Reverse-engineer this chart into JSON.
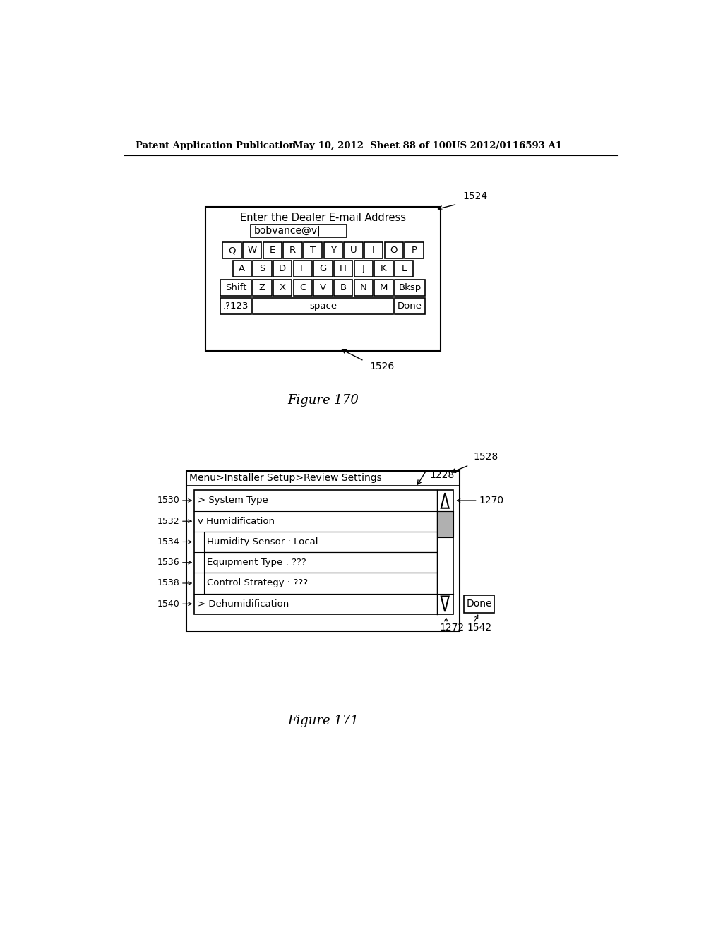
{
  "header_left": "Patent Application Publication",
  "header_mid": "May 10, 2012  Sheet 88 of 100",
  "header_right": "US 2012/0116593 A1",
  "fig170_title": "Enter the Dealer E-mail Address",
  "fig170_input": "bobvance@v|",
  "fig170_row1": [
    "Q",
    "W",
    "E",
    "R",
    "T",
    "Y",
    "U",
    "I",
    "O",
    "P"
  ],
  "fig170_row2": [
    "A",
    "S",
    "D",
    "F",
    "G",
    "H",
    "J",
    "K",
    "L"
  ],
  "fig170_row3": [
    "Shift",
    "Z",
    "X",
    "C",
    "V",
    "B",
    "N",
    "M",
    "Bksp"
  ],
  "fig170_row4_left": ".?123",
  "fig170_row4_mid": "space",
  "fig170_row4_right": "Done",
  "fig170_label": "Figure 170",
  "fig170_ref": "1524",
  "fig170_ref2": "1526",
  "fig171_header": "Menu>Installer Setup>Review Settings",
  "fig171_items": [
    "> System Type",
    "v Humidification",
    "Humidity Sensor : Local",
    "Equipment Type : ???",
    "Control Strategy : ???",
    "> Dehumidification"
  ],
  "fig171_labels_left": [
    "1530",
    "1532",
    "1534",
    "1536",
    "1538",
    "1540"
  ],
  "fig171_ref_1228": "1228",
  "fig171_ref_1270": "1270",
  "fig171_ref_1272": "1272",
  "fig171_ref_1542": "1542",
  "fig171_ref_1528": "1528",
  "fig171_label": "Figure 171",
  "bg_color": "#ffffff",
  "text_color": "#000000"
}
